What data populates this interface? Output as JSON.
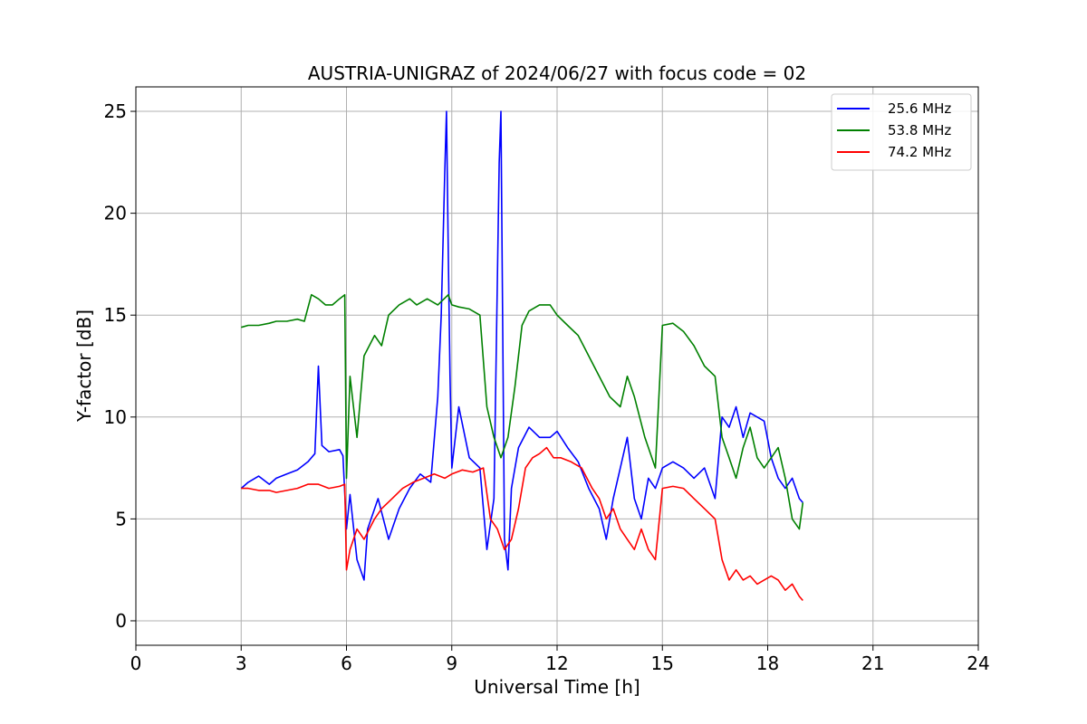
{
  "chart_data": {
    "type": "line",
    "title": "AUSTRIA-UNIGRAZ of 2024/06/27 with focus code = 02",
    "xlabel": "Universal Time [h]",
    "ylabel": "Y-factor [dB]",
    "xlim": [
      0,
      24
    ],
    "ylim": [
      -1.2,
      26.2
    ],
    "xticks": [
      0,
      3,
      6,
      9,
      12,
      15,
      18,
      21,
      24
    ],
    "yticks": [
      0,
      5,
      10,
      15,
      20,
      25
    ],
    "grid": true,
    "legend_position": "top-right",
    "series": [
      {
        "name": "25.6 MHz",
        "color": "#0000ff",
        "x": [
          3.0,
          3.2,
          3.5,
          3.8,
          4.0,
          4.3,
          4.6,
          4.9,
          5.1,
          5.2,
          5.3,
          5.5,
          5.8,
          5.9,
          6.0,
          6.1,
          6.3,
          6.5,
          6.6,
          6.9,
          7.2,
          7.5,
          7.8,
          8.1,
          8.4,
          8.6,
          8.7,
          8.8,
          8.85,
          8.9,
          8.95,
          9.0,
          9.2,
          9.5,
          9.8,
          10.0,
          10.2,
          10.35,
          10.4,
          10.5,
          10.6,
          10.7,
          10.9,
          11.2,
          11.5,
          11.8,
          12.0,
          12.3,
          12.6,
          12.9,
          13.2,
          13.4,
          13.6,
          13.8,
          14.0,
          14.2,
          14.4,
          14.6,
          14.8,
          15.0,
          15.3,
          15.6,
          15.9,
          16.2,
          16.5,
          16.7,
          16.9,
          17.1,
          17.3,
          17.5,
          17.7,
          17.9,
          18.1,
          18.3,
          18.5,
          18.7,
          18.9,
          19.0
        ],
        "y": [
          6.5,
          6.8,
          7.1,
          6.7,
          7.0,
          7.2,
          7.4,
          7.8,
          8.2,
          12.5,
          8.6,
          8.3,
          8.4,
          8.1,
          4.5,
          6.2,
          3.0,
          2.0,
          4.5,
          6.0,
          4.0,
          5.5,
          6.5,
          7.2,
          6.8,
          11.0,
          15.0,
          22.0,
          25.0,
          18.0,
          12.0,
          7.5,
          10.5,
          8.0,
          7.5,
          3.5,
          6.0,
          22.5,
          25.0,
          4.0,
          2.5,
          6.5,
          8.5,
          9.5,
          9.0,
          9.0,
          9.3,
          8.5,
          7.8,
          6.5,
          5.5,
          4.0,
          6.0,
          7.5,
          9.0,
          6.0,
          5.0,
          7.0,
          6.5,
          7.5,
          7.8,
          7.5,
          7.0,
          7.5,
          6.0,
          10.0,
          9.5,
          10.5,
          9.0,
          10.2,
          10.0,
          9.8,
          8.0,
          7.0,
          6.5,
          7.0,
          6.0,
          5.8
        ]
      },
      {
        "name": "53.8 MHz",
        "color": "#008000",
        "x": [
          3.0,
          3.2,
          3.5,
          3.8,
          4.0,
          4.3,
          4.6,
          4.8,
          5.0,
          5.2,
          5.4,
          5.6,
          5.8,
          5.95,
          6.0,
          6.1,
          6.3,
          6.5,
          6.8,
          7.0,
          7.2,
          7.5,
          7.8,
          8.0,
          8.3,
          8.6,
          8.9,
          9.0,
          9.2,
          9.5,
          9.8,
          10.0,
          10.2,
          10.4,
          10.6,
          10.8,
          11.0,
          11.2,
          11.5,
          11.8,
          12.0,
          12.3,
          12.6,
          12.9,
          13.2,
          13.5,
          13.8,
          14.0,
          14.2,
          14.5,
          14.8,
          15.0,
          15.3,
          15.6,
          15.9,
          16.2,
          16.5,
          16.7,
          16.9,
          17.1,
          17.3,
          17.5,
          17.7,
          17.9,
          18.1,
          18.3,
          18.5,
          18.7,
          18.9,
          19.0
        ],
        "y": [
          14.4,
          14.5,
          14.5,
          14.6,
          14.7,
          14.7,
          14.8,
          14.7,
          16.0,
          15.8,
          15.5,
          15.5,
          15.8,
          16.0,
          7.0,
          12.0,
          9.0,
          13.0,
          14.0,
          13.5,
          15.0,
          15.5,
          15.8,
          15.5,
          15.8,
          15.5,
          16.0,
          15.5,
          15.4,
          15.3,
          15.0,
          10.5,
          9.0,
          8.0,
          9.0,
          11.5,
          14.5,
          15.2,
          15.5,
          15.5,
          15.0,
          14.5,
          14.0,
          13.0,
          12.0,
          11.0,
          10.5,
          12.0,
          11.0,
          9.0,
          7.5,
          14.5,
          14.6,
          14.2,
          13.5,
          12.5,
          12.0,
          9.0,
          8.0,
          7.0,
          8.5,
          9.5,
          8.0,
          7.5,
          8.0,
          8.5,
          7.0,
          5.0,
          4.5,
          5.8
        ]
      },
      {
        "name": "74.2 MHz",
        "color": "#ff0000",
        "x": [
          3.0,
          3.2,
          3.5,
          3.8,
          4.0,
          4.3,
          4.6,
          4.9,
          5.2,
          5.5,
          5.8,
          5.95,
          6.0,
          6.1,
          6.3,
          6.5,
          6.8,
          7.0,
          7.3,
          7.6,
          7.9,
          8.2,
          8.5,
          8.8,
          9.0,
          9.3,
          9.6,
          9.9,
          10.1,
          10.3,
          10.5,
          10.7,
          10.9,
          11.1,
          11.3,
          11.5,
          11.7,
          11.9,
          12.1,
          12.4,
          12.7,
          13.0,
          13.2,
          13.4,
          13.6,
          13.8,
          14.0,
          14.2,
          14.4,
          14.6,
          14.8,
          15.0,
          15.3,
          15.6,
          15.9,
          16.2,
          16.5,
          16.7,
          16.9,
          17.1,
          17.3,
          17.5,
          17.7,
          17.9,
          18.1,
          18.3,
          18.5,
          18.7,
          18.9,
          19.0
        ],
        "y": [
          6.5,
          6.5,
          6.4,
          6.4,
          6.3,
          6.4,
          6.5,
          6.7,
          6.7,
          6.5,
          6.6,
          6.7,
          2.5,
          3.5,
          4.5,
          4.0,
          5.0,
          5.5,
          6.0,
          6.5,
          6.8,
          7.0,
          7.2,
          7.0,
          7.2,
          7.4,
          7.3,
          7.5,
          5.0,
          4.5,
          3.5,
          4.0,
          5.5,
          7.5,
          8.0,
          8.2,
          8.5,
          8.0,
          8.0,
          7.8,
          7.5,
          6.5,
          6.0,
          5.0,
          5.5,
          4.5,
          4.0,
          3.5,
          4.5,
          3.5,
          3.0,
          6.5,
          6.6,
          6.5,
          6.0,
          5.5,
          5.0,
          3.0,
          2.0,
          2.5,
          2.0,
          2.2,
          1.8,
          2.0,
          2.2,
          2.0,
          1.5,
          1.8,
          1.2,
          1.0
        ]
      }
    ]
  }
}
